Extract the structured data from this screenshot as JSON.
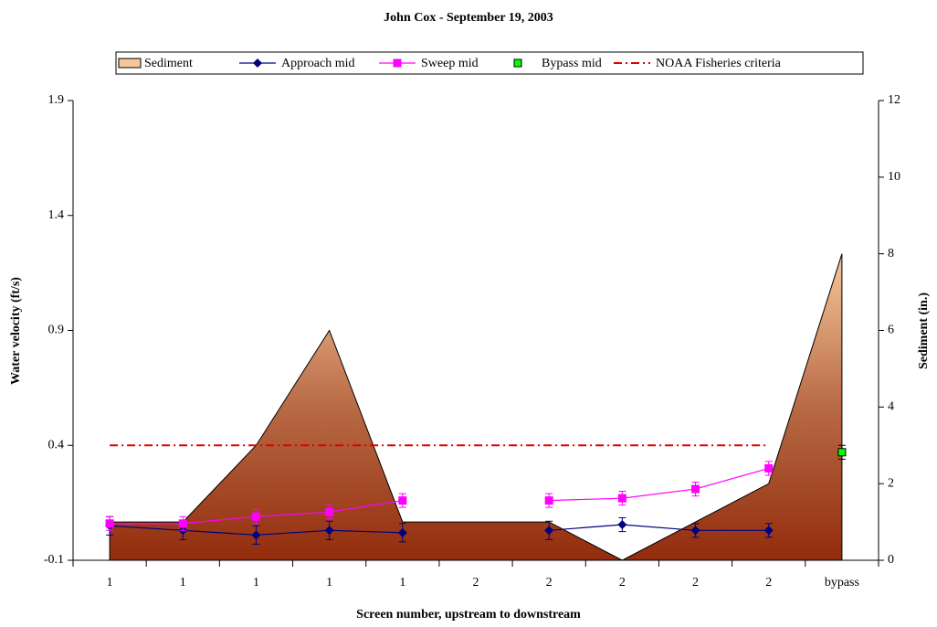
{
  "chart_data": {
    "type": "line",
    "title": "John Cox - September 19, 2003",
    "x_label": "Screen number, upstream to downstream",
    "y_label": "Water velocity (ft/s)",
    "y2_label": "Sediment (in.)",
    "categories": [
      "1",
      "1",
      "1",
      "1",
      "1",
      "2",
      "2",
      "2",
      "2",
      "2",
      "bypass"
    ],
    "ylim": [
      -0.1,
      1.9
    ],
    "yticks": [
      -0.1,
      0.4,
      0.9,
      1.4,
      1.9
    ],
    "y2lim": [
      0,
      12
    ],
    "y2ticks": [
      0,
      2,
      4,
      6,
      8,
      10,
      12
    ],
    "series": [
      {
        "name": "Sediment",
        "type": "area",
        "axis": "y2",
        "color": "#9a3510",
        "values": [
          1,
          1,
          3,
          6,
          1,
          1,
          1,
          0,
          1,
          2,
          8
        ]
      },
      {
        "name": "Approach mid",
        "type": "line",
        "color": "#000080",
        "values": [
          0.05,
          0.03,
          0.01,
          0.03,
          0.02,
          null,
          0.03,
          0.055,
          0.03,
          0.03,
          null
        ],
        "errors": [
          0.04,
          0.04,
          0.04,
          0.04,
          0.04,
          null,
          0.04,
          0.03,
          0.03,
          0.03,
          null
        ]
      },
      {
        "name": "Sweep mid",
        "type": "line",
        "color": "#ff00ff",
        "values": [
          0.06,
          0.06,
          0.09,
          0.11,
          0.16,
          null,
          0.16,
          0.17,
          0.21,
          0.3,
          null
        ],
        "errors": [
          0.03,
          0.03,
          0.03,
          0.03,
          0.03,
          null,
          0.03,
          0.03,
          0.03,
          0.03,
          null
        ]
      },
      {
        "name": "Bypass mid",
        "type": "scatter",
        "color": "#00ff00",
        "values": [
          null,
          null,
          null,
          null,
          null,
          null,
          null,
          null,
          null,
          null,
          0.37
        ],
        "errors": [
          null,
          null,
          null,
          null,
          null,
          null,
          null,
          null,
          null,
          null,
          0.03
        ]
      },
      {
        "name": "NOAA Fisheries criteria",
        "type": "dashdot",
        "color": "#e00000",
        "values": [
          0.4,
          0.4,
          0.4,
          0.4,
          0.4,
          0.4,
          0.4,
          0.4,
          0.4,
          0.4,
          null
        ]
      }
    ]
  }
}
